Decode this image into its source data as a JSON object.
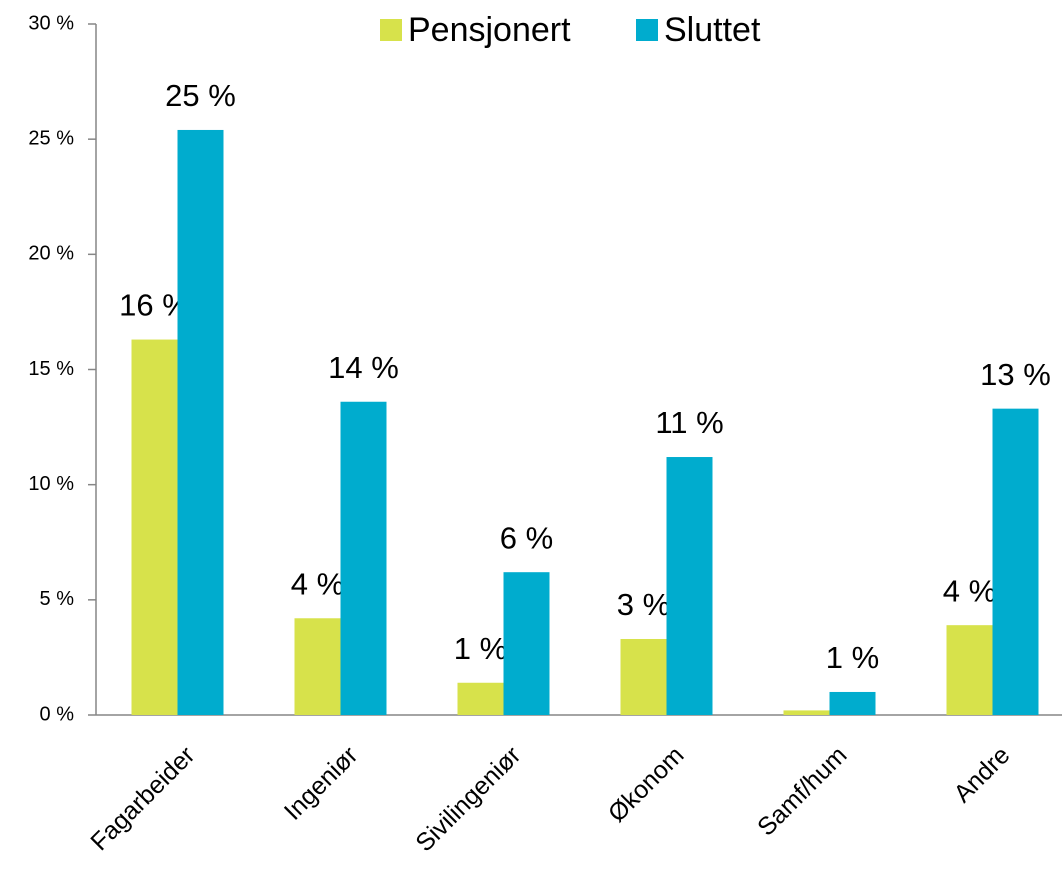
{
  "chart_data": {
    "type": "bar",
    "categories": [
      "Fagarbeider",
      "Ingeniør",
      "Sivilingeniør",
      "Økonom",
      "Samf/hum",
      "Andre"
    ],
    "series": [
      {
        "name": "Pensjonert",
        "color": "#d7e24b",
        "values": [
          16.3,
          4.2,
          1.4,
          3.3,
          0.2,
          3.9
        ],
        "value_labels": [
          "16 %",
          "4 %",
          "1 %",
          "3 %",
          null,
          "4 %"
        ]
      },
      {
        "name": "Sluttet",
        "color": "#00acce",
        "values": [
          25.4,
          13.6,
          6.2,
          11.2,
          1.0,
          13.3
        ],
        "value_labels": [
          "25 %",
          "14 %",
          "6 %",
          "11 %",
          "1 %",
          "13 %"
        ]
      }
    ],
    "ylim": [
      0,
      30
    ],
    "yticks": [
      {
        "value": 0,
        "label": "0 %"
      },
      {
        "value": 5,
        "label": "5 %"
      },
      {
        "value": 10,
        "label": "10 %"
      },
      {
        "value": 15,
        "label": "15 %"
      },
      {
        "value": 20,
        "label": "20 %"
      },
      {
        "value": 25,
        "label": "25 %"
      },
      {
        "value": 30,
        "label": "30 %"
      }
    ],
    "grid": false,
    "legend": "top"
  }
}
